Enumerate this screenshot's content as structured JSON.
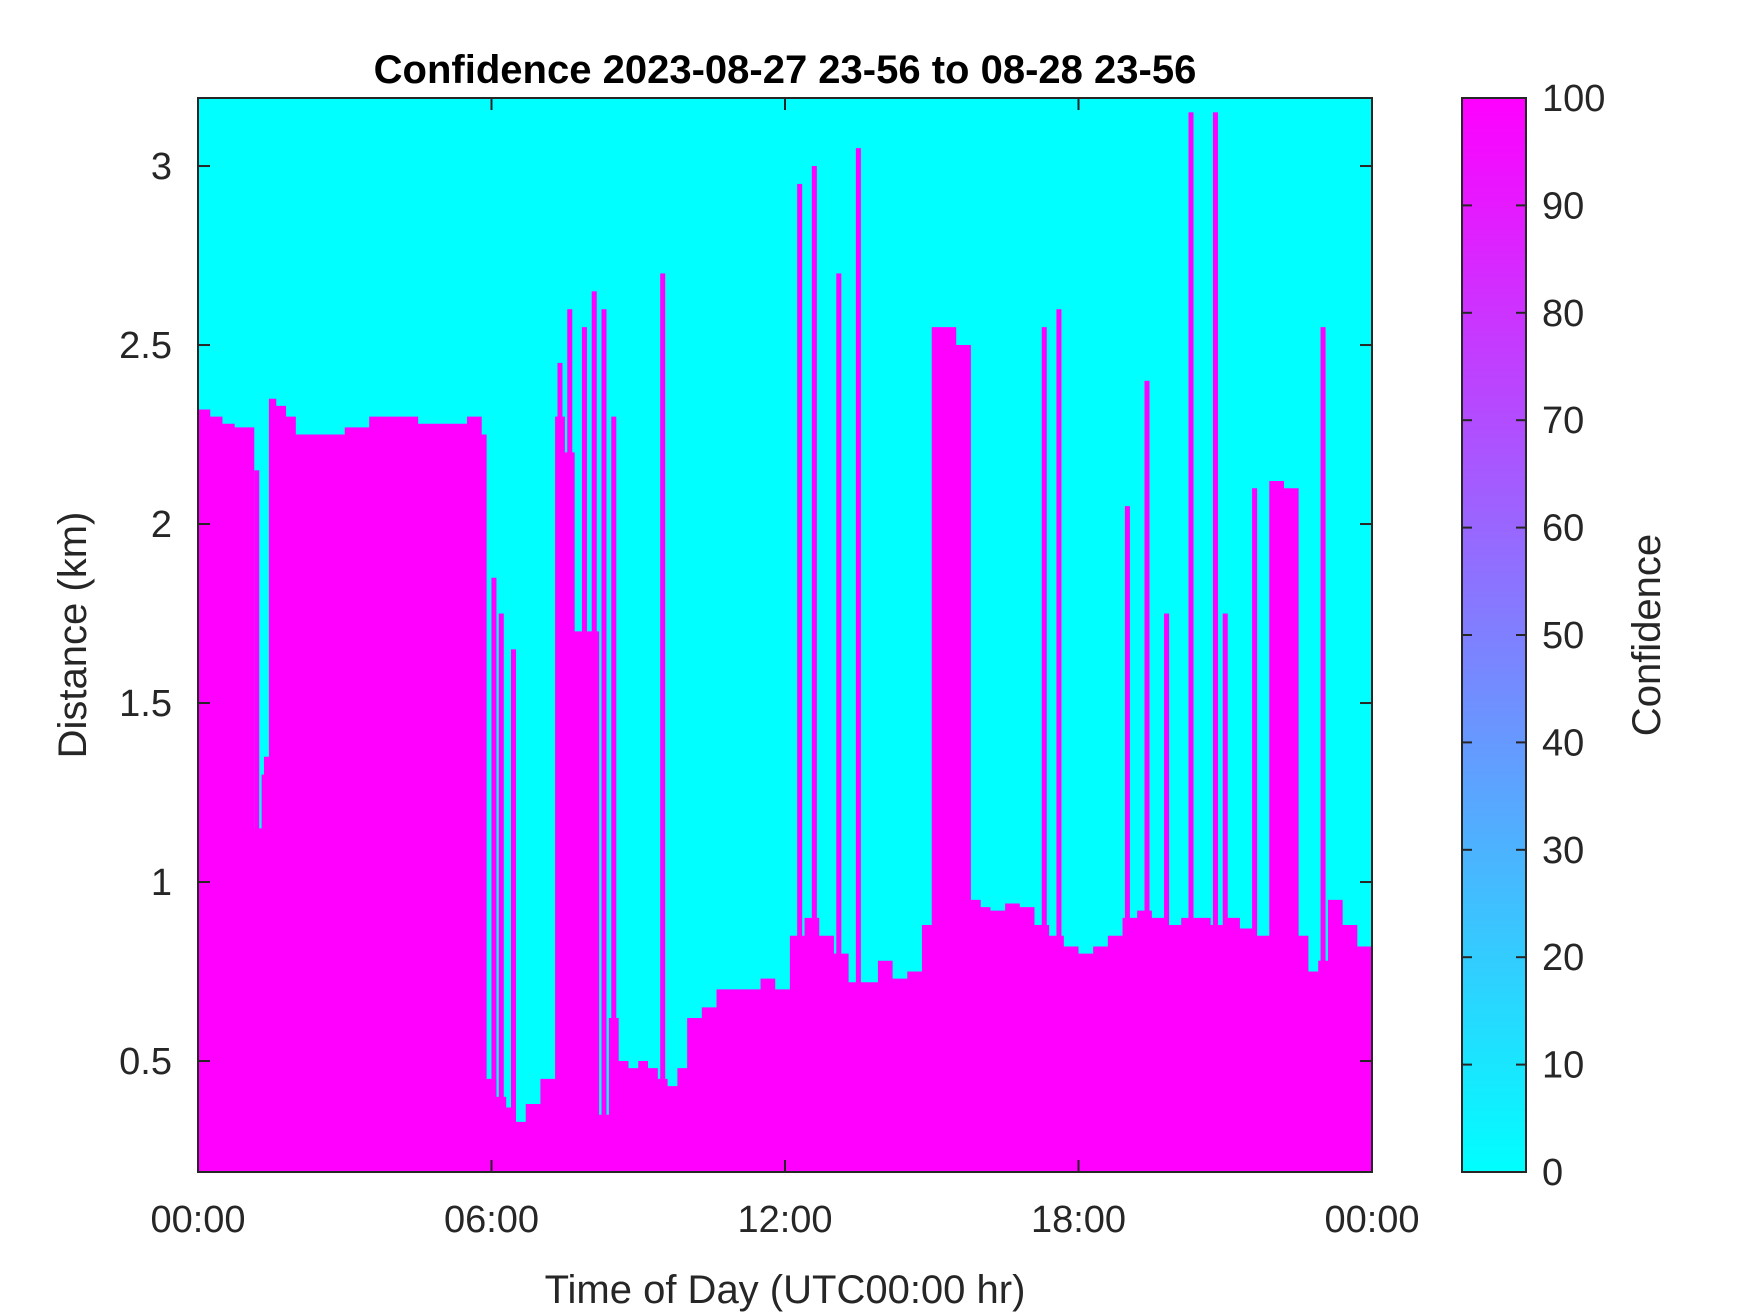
{
  "chart_data": {
    "type": "heatmap",
    "title": "Confidence 2023-08-27 23-56 to 08-28 23-56",
    "xlabel": "Time of Day (UTC00:00 hr)",
    "ylabel": "Distance (km)",
    "colorbar_label": "Confidence",
    "xlim_hours": [
      0,
      24
    ],
    "ylim_km": [
      0.19,
      3.19
    ],
    "x_ticks": [
      {
        "value": 0,
        "label": "00:00"
      },
      {
        "value": 6,
        "label": "06:00"
      },
      {
        "value": 12,
        "label": "12:00"
      },
      {
        "value": 18,
        "label": "18:00"
      },
      {
        "value": 24,
        "label": "00:00"
      }
    ],
    "y_ticks": [
      {
        "value": 0.5,
        "label": "0.5"
      },
      {
        "value": 1,
        "label": "1"
      },
      {
        "value": 1.5,
        "label": "1.5"
      },
      {
        "value": 2,
        "label": "2"
      },
      {
        "value": 2.5,
        "label": "2.5"
      },
      {
        "value": 3,
        "label": "3"
      }
    ],
    "colorbar": {
      "range": [
        0,
        100
      ],
      "ticks": [
        0,
        10,
        20,
        30,
        40,
        50,
        60,
        70,
        80,
        90,
        100
      ],
      "low_color": "#00ffff",
      "high_color": "#ff00ff"
    },
    "background_value": 0,
    "fill_value": 100,
    "high_confidence_extent": {
      "description": "Confidence is 100 from the lowest range gate up to this distance (km) at each time; above it confidence is 0",
      "time_hours": [
        0,
        0.25,
        0.5,
        0.75,
        1.0,
        1.15,
        1.3,
        1.45,
        1.6,
        1.8,
        2.0,
        2.5,
        3.0,
        3.5,
        4.0,
        4.5,
        5.0,
        5.5,
        5.8,
        5.9,
        6.1,
        6.3,
        6.5,
        6.7,
        7.0,
        7.2,
        7.3,
        7.5,
        7.7,
        8.0,
        8.2,
        8.4,
        8.6,
        8.8,
        9.0,
        9.2,
        9.4,
        9.6,
        9.8,
        10.0,
        10.3,
        10.6,
        10.9,
        11.2,
        11.5,
        11.8,
        12.1,
        12.4,
        12.7,
        13.0,
        13.3,
        13.6,
        13.9,
        14.2,
        14.5,
        14.8,
        15.0,
        15.2,
        15.5,
        15.8,
        16.0,
        16.2,
        16.5,
        16.8,
        17.1,
        17.4,
        17.7,
        18.0,
        18.3,
        18.6,
        18.9,
        19.2,
        19.5,
        19.8,
        20.1,
        20.4,
        20.7,
        21.0,
        21.3,
        21.6,
        21.9,
        22.2,
        22.5,
        22.7,
        22.9,
        23.1,
        23.4,
        23.7,
        24.0
      ],
      "distance_km": [
        2.32,
        2.3,
        2.28,
        2.27,
        2.27,
        1.15,
        1.3,
        2.35,
        2.33,
        2.3,
        2.25,
        2.25,
        2.27,
        2.3,
        2.3,
        2.28,
        2.28,
        2.3,
        2.25,
        0.45,
        0.4,
        0.37,
        0.33,
        0.38,
        0.45,
        0.45,
        2.3,
        2.2,
        1.7,
        1.7,
        0.35,
        0.62,
        0.5,
        0.48,
        0.5,
        0.48,
        0.45,
        0.43,
        0.48,
        0.62,
        0.65,
        0.7,
        0.7,
        0.7,
        0.73,
        0.7,
        0.85,
        0.9,
        0.85,
        0.8,
        0.72,
        0.72,
        0.78,
        0.73,
        0.75,
        0.88,
        2.55,
        2.55,
        2.5,
        0.95,
        0.93,
        0.92,
        0.94,
        0.93,
        0.88,
        0.85,
        0.82,
        0.8,
        0.82,
        0.85,
        0.9,
        0.92,
        0.9,
        0.88,
        0.9,
        0.9,
        0.88,
        0.9,
        0.87,
        0.85,
        2.12,
        2.1,
        0.85,
        0.75,
        0.78,
        0.95,
        0.88,
        0.82,
        0.7
      ]
    },
    "high_confidence_spikes": {
      "description": "Narrow columns where confidence 100 extends higher than the base layer",
      "time_hours": [
        1.2,
        1.4,
        6.05,
        6.2,
        6.45,
        7.4,
        7.6,
        7.9,
        8.1,
        8.3,
        8.5,
        9.5,
        12.3,
        12.6,
        13.1,
        13.5,
        15.6,
        17.3,
        17.6,
        19.0,
        19.4,
        19.8,
        20.3,
        20.8,
        21.0,
        21.6,
        22.0,
        23.0
      ],
      "top_km": [
        2.15,
        1.35,
        1.85,
        1.75,
        1.65,
        2.45,
        2.6,
        2.55,
        2.65,
        2.6,
        2.3,
        2.7,
        2.95,
        3.0,
        2.7,
        3.05,
        2.5,
        2.55,
        2.6,
        2.05,
        2.4,
        1.75,
        3.15,
        3.15,
        1.75,
        2.1,
        2.05,
        2.55
      ]
    }
  }
}
